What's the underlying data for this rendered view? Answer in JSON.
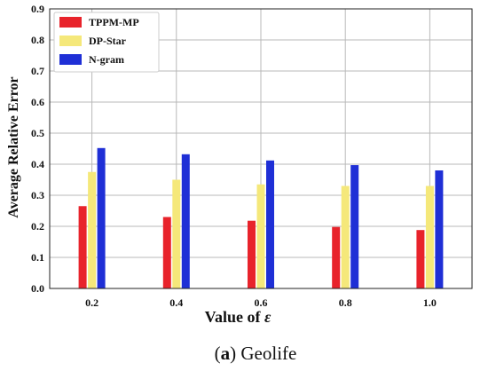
{
  "chart_data": {
    "type": "bar",
    "categories": [
      "0.2",
      "0.4",
      "0.6",
      "0.8",
      "1.0"
    ],
    "series": [
      {
        "name": "TPPM-MP",
        "values": [
          0.265,
          0.23,
          0.218,
          0.198,
          0.188
        ],
        "color": "#e8232b"
      },
      {
        "name": "DP-Star",
        "values": [
          0.375,
          0.35,
          0.335,
          0.33,
          0.33
        ],
        "color": "#f5e87a"
      },
      {
        "name": "N-gram",
        "values": [
          0.452,
          0.432,
          0.412,
          0.397,
          0.38
        ],
        "color": "#1f2fd6"
      }
    ],
    "xlabel_prefix": "Value of ",
    "xlabel_symbol": "ε",
    "ylabel": "Average Relative Error",
    "ylim": [
      0,
      0.9
    ],
    "yticks": [
      "0.0",
      "0.1",
      "0.2",
      "0.3",
      "0.4",
      "0.5",
      "0.6",
      "0.7",
      "0.8",
      "0.9"
    ],
    "grid": true,
    "legend_position": "top-left",
    "caption_label": "a",
    "caption_title": "Geolife"
  }
}
